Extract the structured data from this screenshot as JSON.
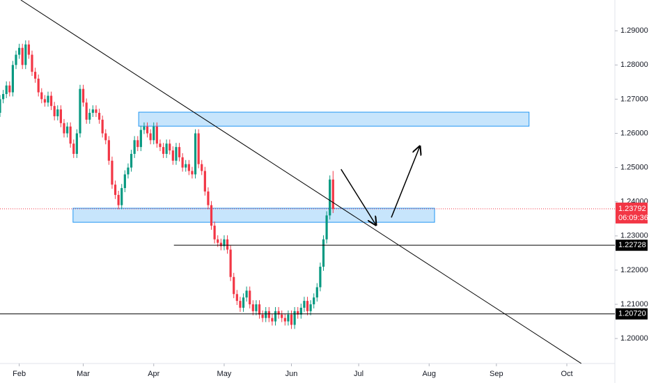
{
  "chart_data": {
    "type": "candlestick",
    "up_color": "#089981",
    "down_color": "#f23645",
    "xlim": [
      0,
      192
    ],
    "ylim": [
      1.1931,
      1.299
    ],
    "xticks": [
      {
        "value": 6,
        "label": "Feb"
      },
      {
        "value": 26,
        "label": "Mar"
      },
      {
        "value": 48,
        "label": "Apr"
      },
      {
        "value": 70,
        "label": "May"
      },
      {
        "value": 91,
        "label": "Jun"
      },
      {
        "value": 112,
        "label": "Jul"
      },
      {
        "value": 134,
        "label": "Aug"
      },
      {
        "value": 155,
        "label": "Sep"
      },
      {
        "value": 177,
        "label": "Oct"
      }
    ],
    "yticks": [
      {
        "value": 1.29,
        "label": "1.29000"
      },
      {
        "value": 1.28,
        "label": "1.28000"
      },
      {
        "value": 1.27,
        "label": "1.27000"
      },
      {
        "value": 1.26,
        "label": "1.26000"
      },
      {
        "value": 1.25,
        "label": "1.25000"
      },
      {
        "value": 1.24,
        "label": "1.24000"
      },
      {
        "value": 1.23,
        "label": "1.23000"
      },
      {
        "value": 1.22,
        "label": "1.22000"
      },
      {
        "value": 1.21,
        "label": "1.21000"
      },
      {
        "value": 1.2,
        "label": "1.20000"
      }
    ],
    "x": [
      0,
      1,
      2,
      3,
      4,
      5,
      6,
      7,
      8,
      9,
      10,
      11,
      12,
      13,
      14,
      15,
      16,
      17,
      18,
      19,
      20,
      21,
      22,
      23,
      24,
      25,
      26,
      27,
      28,
      29,
      30,
      31,
      32,
      33,
      34,
      35,
      36,
      37,
      38,
      39,
      40,
      41,
      42,
      43,
      44,
      45,
      46,
      47,
      48,
      49,
      50,
      51,
      52,
      53,
      54,
      55,
      56,
      57,
      58,
      59,
      60,
      61,
      62,
      63,
      64,
      65,
      66,
      67,
      68,
      69,
      70,
      71,
      72,
      73,
      74,
      75,
      76,
      77,
      78,
      79,
      80,
      81,
      82,
      83,
      84,
      85,
      86,
      87,
      88,
      89,
      90,
      91,
      92,
      93,
      94,
      95,
      96,
      97,
      98,
      99,
      100,
      101,
      102,
      103,
      104
    ],
    "open": [
      1.266,
      1.27,
      1.2715,
      1.274,
      1.272,
      1.28,
      1.283,
      1.285,
      1.28,
      1.286,
      1.283,
      1.278,
      1.276,
      1.272,
      1.27,
      1.269,
      1.271,
      1.268,
      1.265,
      1.267,
      1.263,
      1.26,
      1.262,
      1.257,
      1.254,
      1.26,
      1.273,
      1.269,
      1.264,
      1.266,
      1.267,
      1.266,
      1.264,
      1.26,
      1.258,
      1.252,
      1.245,
      1.242,
      1.239,
      1.244,
      1.248,
      1.25,
      1.254,
      1.258,
      1.256,
      1.261,
      1.262,
      1.26,
      1.258,
      1.262,
      1.257,
      1.256,
      1.254,
      1.257,
      1.255,
      1.252,
      1.256,
      1.253,
      1.25,
      1.251,
      1.249,
      1.248,
      1.26,
      1.251,
      1.249,
      1.243,
      1.239,
      1.233,
      1.229,
      1.228,
      1.227,
      1.229,
      1.226,
      1.218,
      1.213,
      1.211,
      1.209,
      1.212,
      1.214,
      1.21,
      1.208,
      1.21,
      1.207,
      1.206,
      1.208,
      1.206,
      1.205,
      1.208,
      1.207,
      1.206,
      1.205,
      1.207,
      1.204,
      1.208,
      1.207,
      1.209,
      1.211,
      1.208,
      1.21,
      1.212,
      1.215,
      1.221,
      1.229,
      1.236,
      1.2465
    ],
    "high": [
      1.2712,
      1.2727,
      1.2752,
      1.2752,
      1.2812,
      1.2842,
      1.2862,
      1.2862,
      1.2872,
      1.2872,
      1.2842,
      1.2792,
      1.2772,
      1.2732,
      1.2712,
      1.2722,
      1.2722,
      1.2692,
      1.2682,
      1.2682,
      1.2642,
      1.2632,
      1.2632,
      1.2582,
      1.2612,
      1.2742,
      1.2742,
      1.2702,
      1.2672,
      1.2682,
      1.2682,
      1.2672,
      1.2652,
      1.2612,
      1.2592,
      1.2532,
      1.2462,
      1.2432,
      1.2452,
      1.2492,
      1.2512,
      1.2552,
      1.2592,
      1.2592,
      1.2622,
      1.2632,
      1.2632,
      1.2612,
      1.2632,
      1.2632,
      1.2582,
      1.2572,
      1.2582,
      1.2582,
      1.2562,
      1.2572,
      1.2572,
      1.2542,
      1.2522,
      1.2522,
      1.2502,
      1.2612,
      1.2612,
      1.2522,
      1.2502,
      1.2442,
      1.2402,
      1.2342,
      1.2302,
      1.2292,
      1.2302,
      1.2302,
      1.2272,
      1.2192,
      1.2142,
      1.2122,
      1.2132,
      1.2152,
      1.2152,
      1.2112,
      1.2112,
      1.2112,
      1.2082,
      1.2092,
      1.2092,
      1.2072,
      1.2092,
      1.2092,
      1.2082,
      1.2072,
      1.2082,
      1.2082,
      1.2092,
      1.2092,
      1.2102,
      1.2122,
      1.2122,
      1.2112,
      1.2132,
      1.2162,
      1.2222,
      1.2302,
      1.2372,
      1.2477,
      1.249
    ],
    "low": [
      1.2648,
      1.2688,
      1.2703,
      1.2708,
      1.2708,
      1.2788,
      1.2818,
      1.2788,
      1.2788,
      1.2818,
      1.2768,
      1.2748,
      1.2708,
      1.2688,
      1.2678,
      1.2678,
      1.2668,
      1.2638,
      1.2638,
      1.2618,
      1.2588,
      1.2588,
      1.2558,
      1.2528,
      1.2528,
      1.2588,
      1.2678,
      1.2628,
      1.2628,
      1.2648,
      1.2648,
      1.2628,
      1.2588,
      1.2568,
      1.2508,
      1.2438,
      1.2408,
      1.2378,
      1.2378,
      1.2428,
      1.2468,
      1.2488,
      1.2528,
      1.2548,
      1.2548,
      1.2598,
      1.2588,
      1.2568,
      1.2568,
      1.2558,
      1.2548,
      1.2528,
      1.2528,
      1.2538,
      1.2508,
      1.2508,
      1.2518,
      1.2488,
      1.2488,
      1.2478,
      1.2468,
      1.2468,
      1.2498,
      1.2478,
      1.2418,
      1.2378,
      1.2318,
      1.2278,
      1.2268,
      1.2258,
      1.2258,
      1.2248,
      1.2168,
      1.2118,
      1.2098,
      1.2078,
      1.2078,
      1.2108,
      1.2088,
      1.2068,
      1.2068,
      1.2058,
      1.2048,
      1.2048,
      1.2048,
      1.2038,
      1.2038,
      1.2058,
      1.2048,
      1.2038,
      1.2038,
      1.2028,
      1.2028,
      1.2058,
      1.2058,
      1.2078,
      1.2068,
      1.2068,
      1.2088,
      1.2108,
      1.2138,
      1.2198,
      1.2278,
      1.2348,
      1.2367
    ],
    "close": [
      1.27,
      1.2715,
      1.274,
      1.272,
      1.28,
      1.283,
      1.285,
      1.28,
      1.286,
      1.283,
      1.278,
      1.276,
      1.272,
      1.27,
      1.269,
      1.271,
      1.268,
      1.265,
      1.267,
      1.263,
      1.26,
      1.262,
      1.257,
      1.254,
      1.26,
      1.273,
      1.269,
      1.264,
      1.266,
      1.267,
      1.266,
      1.264,
      1.26,
      1.258,
      1.252,
      1.245,
      1.242,
      1.239,
      1.244,
      1.248,
      1.25,
      1.254,
      1.258,
      1.256,
      1.261,
      1.262,
      1.26,
      1.258,
      1.262,
      1.257,
      1.256,
      1.254,
      1.257,
      1.255,
      1.252,
      1.256,
      1.253,
      1.25,
      1.251,
      1.249,
      1.248,
      1.26,
      1.251,
      1.249,
      1.243,
      1.239,
      1.233,
      1.229,
      1.228,
      1.227,
      1.229,
      1.226,
      1.218,
      1.213,
      1.211,
      1.209,
      1.212,
      1.214,
      1.21,
      1.208,
      1.21,
      1.207,
      1.206,
      1.208,
      1.206,
      1.205,
      1.208,
      1.207,
      1.206,
      1.205,
      1.207,
      1.204,
      1.208,
      1.207,
      1.209,
      1.211,
      1.208,
      1.21,
      1.212,
      1.215,
      1.221,
      1.229,
      1.236,
      1.2465,
      1.2379
    ],
    "zone_color": "#2196f3",
    "zones": [
      {
        "x": [
          43.3,
          165.2
        ],
        "y": [
          1.2621,
          1.2662
        ]
      },
      {
        "x": [
          22.8,
          135.7
        ],
        "y": [
          1.234,
          1.2381
        ]
      }
    ],
    "levels": [
      {
        "price": 1.22728,
        "x_start": 54.3
      },
      {
        "price": {
          "value": 1.2072,
          "label": "1.20720"
        },
        "x_start": 0
      }
    ],
    "trendline": {
      "x": [
        6.5,
        181.5
      ],
      "y": [
        1.299,
        1.1927
      ]
    },
    "arrows": [
      {
        "x": [
          106.5,
          117.4
        ],
        "y": [
          1.2495,
          1.2332
        ]
      },
      {
        "x": [
          122.2,
          131.1
        ],
        "y": [
          1.2354,
          1.2562
        ]
      }
    ],
    "last_price": 1.23792,
    "countdown": "06:09:36"
  }
}
